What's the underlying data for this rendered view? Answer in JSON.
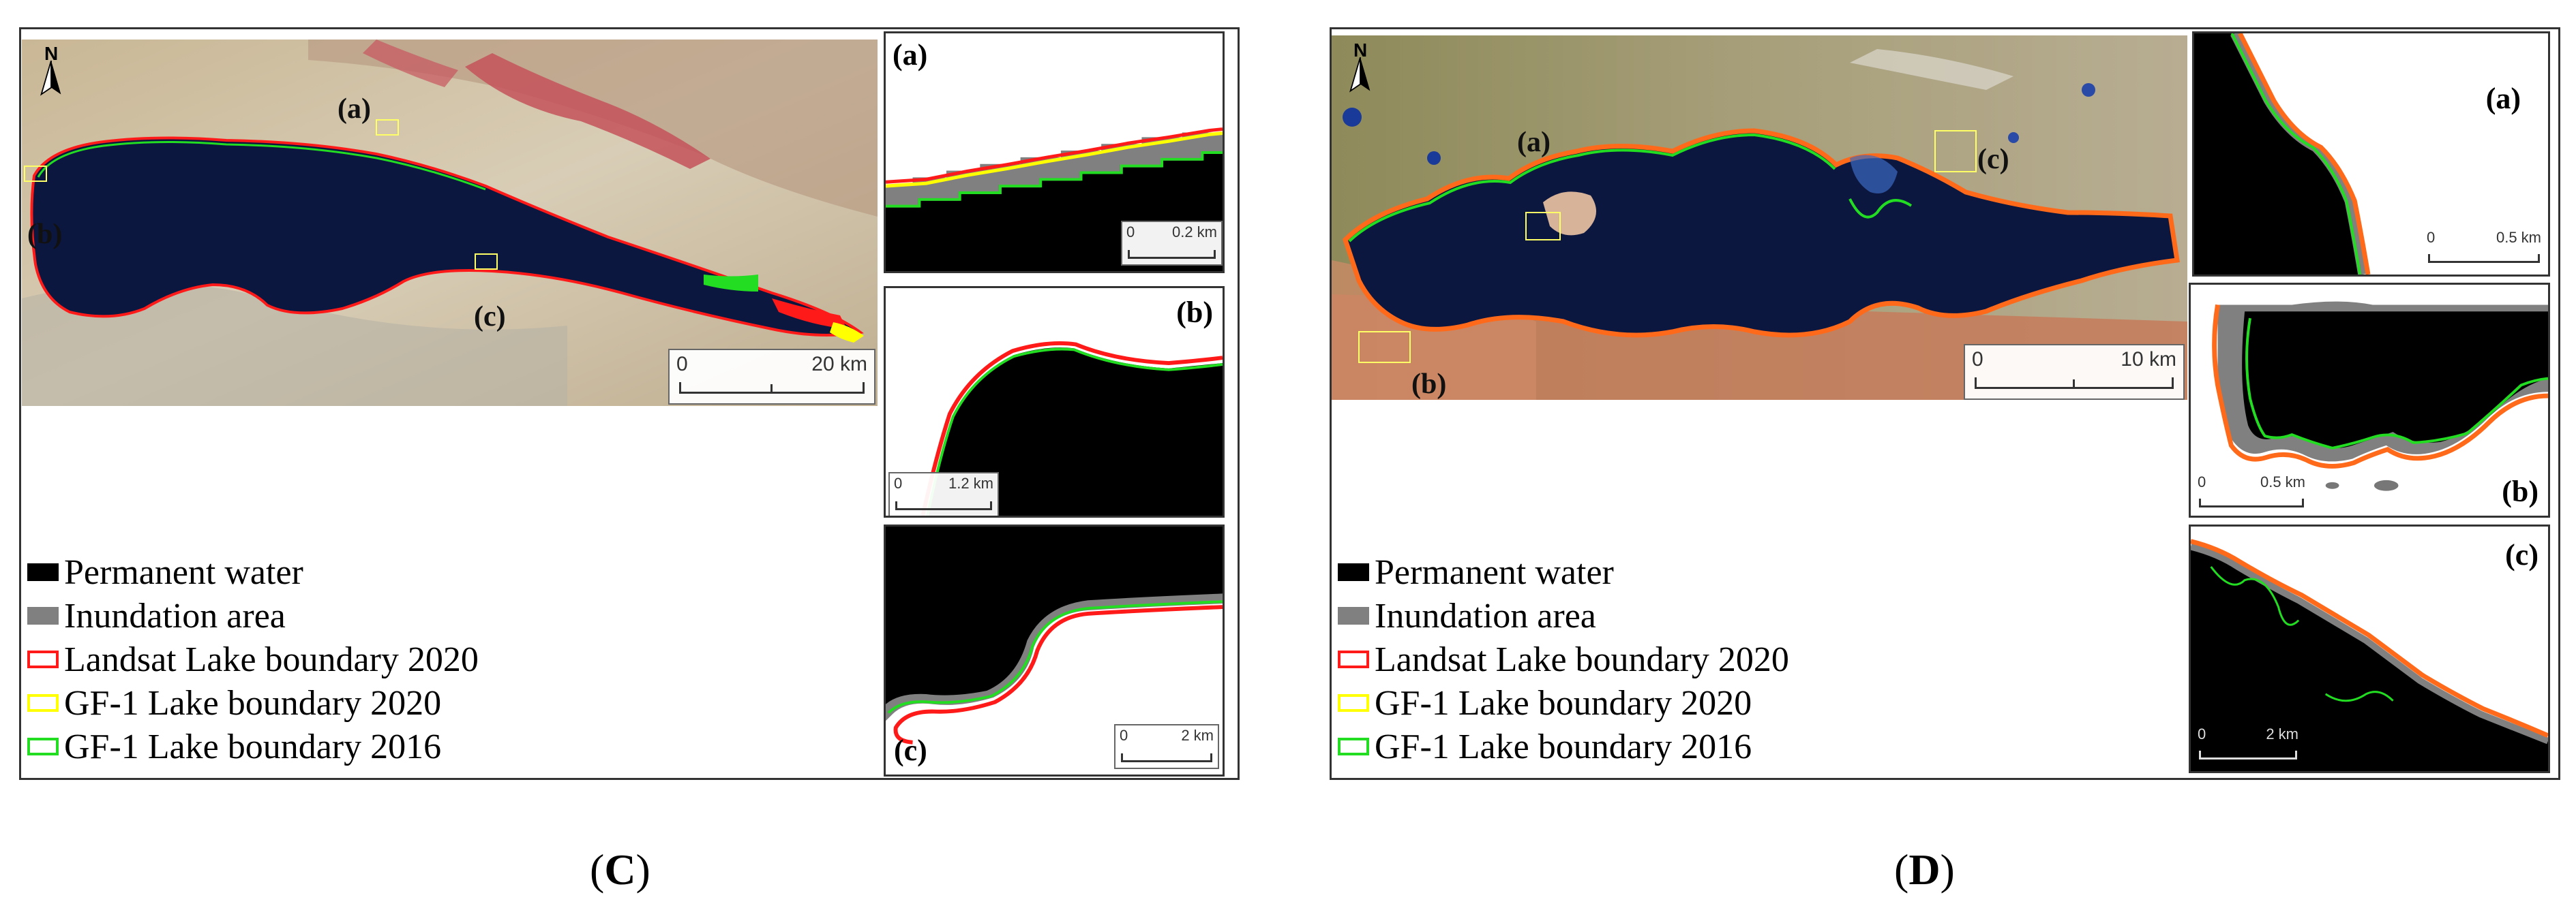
{
  "panels": [
    {
      "id": "C",
      "caption_open": "(",
      "caption_letter": "C",
      "caption_close": ")",
      "north_label": "N",
      "main_scale": {
        "zero": "0",
        "end": "20 km"
      },
      "map_labels": {
        "a": "(a)",
        "b": "(b)",
        "c": "(c)"
      },
      "insets": [
        {
          "label": "(a)",
          "scale_zero": "0",
          "scale_end": "0.2 km"
        },
        {
          "label": "(b)",
          "scale_zero": "0",
          "scale_end": "1.2 km"
        },
        {
          "label": "(c)",
          "scale_zero": "0",
          "scale_end": "2 km"
        }
      ],
      "legend": [
        {
          "label": "Permanent water",
          "style": "fill",
          "color": "#000000"
        },
        {
          "label": "Inundation area",
          "style": "fill",
          "color": "#808080"
        },
        {
          "label": "Landsat Lake boundary 2020",
          "style": "outline",
          "color": "#ff1a1a"
        },
        {
          "label": "GF-1 Lake boundary 2020",
          "style": "outline",
          "color": "#ffff00"
        },
        {
          "label": "GF-1 Lake boundary 2016",
          "style": "outline",
          "color": "#22dd22"
        }
      ]
    },
    {
      "id": "D",
      "caption_open": "(",
      "caption_letter": "D",
      "caption_close": ")",
      "north_label": "N",
      "main_scale": {
        "zero": "0",
        "end": "10 km"
      },
      "map_labels": {
        "a": "(a)",
        "b": "(b)",
        "c": "(c)"
      },
      "insets": [
        {
          "label": "(a)",
          "scale_zero": "0",
          "scale_end": "0.5 km"
        },
        {
          "label": "(b)",
          "scale_zero": "0",
          "scale_end": "0.5 km"
        },
        {
          "label": "(c)",
          "scale_zero": "0",
          "scale_end": "2 km"
        }
      ],
      "legend": [
        {
          "label": "Permanent water",
          "style": "fill",
          "color": "#000000"
        },
        {
          "label": "Inundation area",
          "style": "fill",
          "color": "#808080"
        },
        {
          "label": "Landsat Lake boundary 2020",
          "style": "outline",
          "color": "#ff1a1a"
        },
        {
          "label": "GF-1 Lake boundary 2020",
          "style": "outline",
          "color": "#ffff00"
        },
        {
          "label": "GF-1 Lake boundary 2016",
          "style": "outline",
          "color": "#22dd22"
        }
      ]
    }
  ]
}
